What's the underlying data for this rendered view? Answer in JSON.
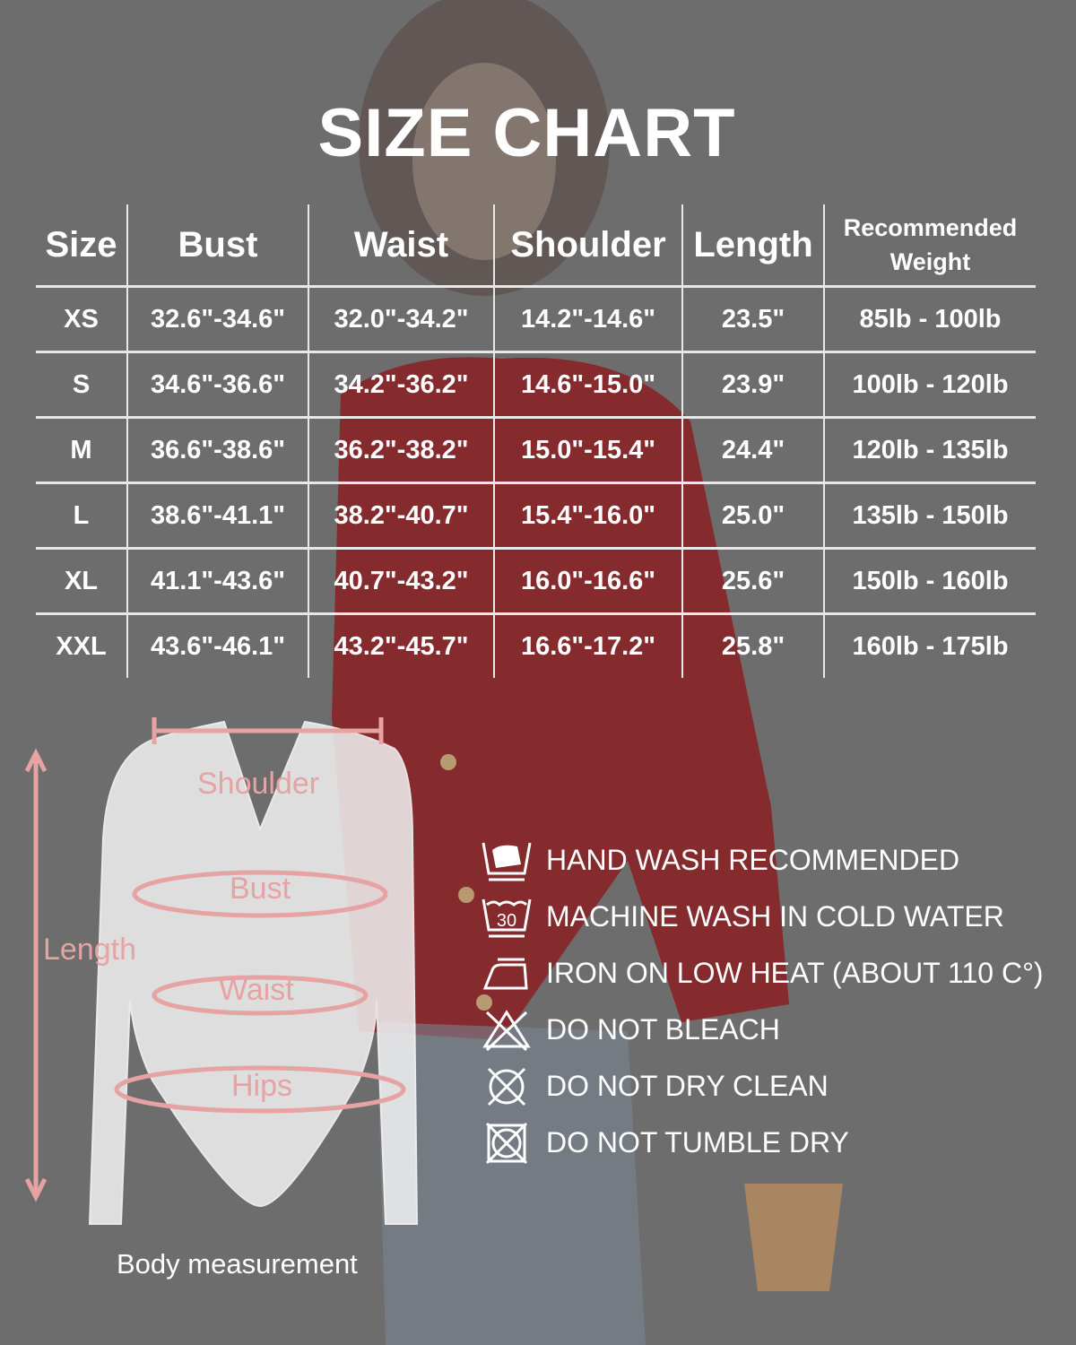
{
  "title": "SIZE CHART",
  "table": {
    "headers": [
      "Size",
      "Bust",
      "Waist",
      "Shoulder",
      "Length",
      "Recommended Weight"
    ],
    "rows": [
      [
        "XS",
        "32.6\"-34.6\"",
        "32.0\"-34.2\"",
        "14.2\"-14.6\"",
        "23.5\"",
        "85lb - 100lb"
      ],
      [
        "S",
        "34.6\"-36.6\"",
        "34.2\"-36.2\"",
        "14.6\"-15.0\"",
        "23.9\"",
        "100lb - 120lb"
      ],
      [
        "M",
        "36.6\"-38.6\"",
        "36.2\"-38.2\"",
        "15.0\"-15.4\"",
        "24.4\"",
        "120lb - 135lb"
      ],
      [
        "L",
        "38.6\"-41.1\"",
        "38.2\"-40.7\"",
        "15.4\"-16.0\"",
        "25.0\"",
        "135lb - 150lb"
      ],
      [
        "XL",
        "41.1\"-43.6\"",
        "40.7\"-43.2\"",
        "16.0\"-16.6\"",
        "25.6\"",
        "150lb - 160lb"
      ],
      [
        "XXL",
        "43.6\"-46.1\"",
        "43.2\"-45.7\"",
        "16.6\"-17.2\"",
        "25.8\"",
        "160lb - 175lb"
      ]
    ]
  },
  "diagram": {
    "labels": {
      "shoulder": "Shoulder",
      "bust": "Bust",
      "length": "Length",
      "waist": "Waist",
      "hips": "Hips"
    },
    "caption": "Body measurement",
    "accent": "#e6a3a3"
  },
  "care": [
    {
      "icon": "hand-wash-icon",
      "text": "HAND WASH RECOMMENDED"
    },
    {
      "icon": "machine-wash-30-icon",
      "text": "MACHINE WASH IN COLD WATER",
      "icon_text": "30"
    },
    {
      "icon": "iron-low-icon",
      "text": "IRON ON LOW HEAT (ABOUT 110 C°)"
    },
    {
      "icon": "no-bleach-icon",
      "text": "DO NOT BLEACH"
    },
    {
      "icon": "no-dry-clean-icon",
      "text": "DO NOT DRY CLEAN"
    },
    {
      "icon": "no-tumble-dry-icon",
      "text": "DO NOT TUMBLE DRY"
    }
  ],
  "colors": {
    "background": "#6d6d6d",
    "cardigan": "#8a1f22",
    "text": "#ffffff"
  }
}
